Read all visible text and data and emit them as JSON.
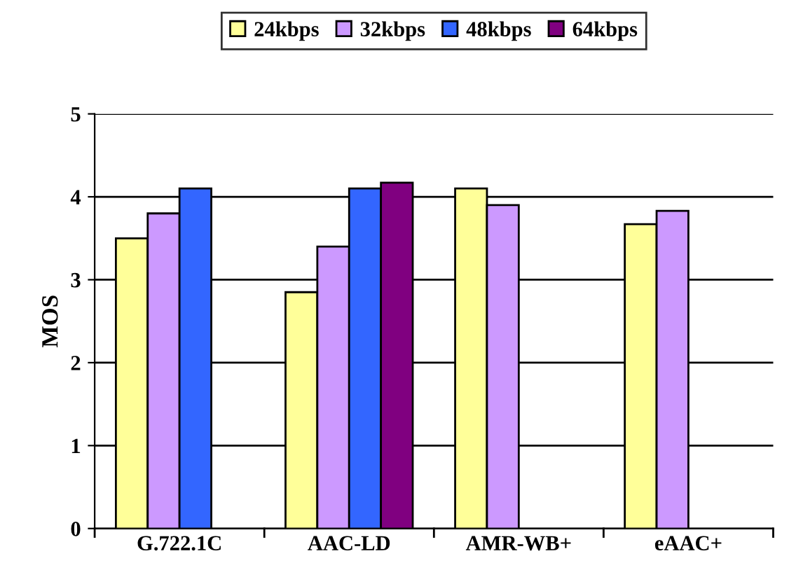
{
  "chart_data": {
    "type": "bar",
    "ylabel": "MOS",
    "categories": [
      "G.722.1C",
      "AAC-LD",
      "AMR-WB+",
      "eAAC+"
    ],
    "series": [
      {
        "name": "24kbps",
        "color": "#ffff99",
        "values": [
          3.5,
          2.85,
          4.1,
          3.67
        ]
      },
      {
        "name": "32kbps",
        "color": "#cc99ff",
        "values": [
          3.8,
          3.4,
          3.9,
          3.83
        ]
      },
      {
        "name": "48kbps",
        "color": "#3366ff",
        "values": [
          4.1,
          4.1,
          null,
          null
        ]
      },
      {
        "name": "64kbps",
        "color": "#800080",
        "values": [
          null,
          4.17,
          null,
          null
        ]
      }
    ],
    "ylim": [
      0,
      5
    ],
    "yticks": [
      0,
      1,
      2,
      3,
      4,
      5
    ],
    "grid": "y",
    "legend": "top"
  }
}
